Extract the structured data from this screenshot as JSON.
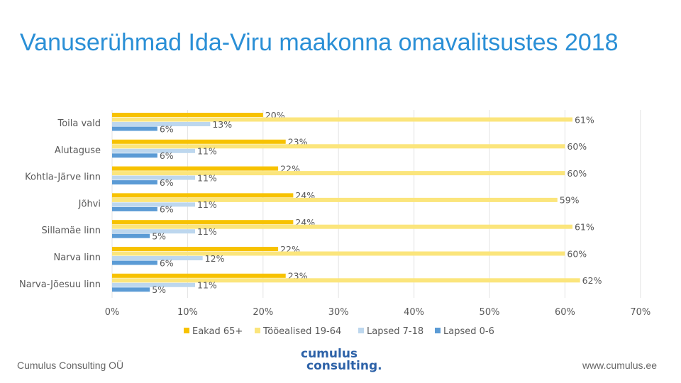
{
  "title": "Vanuserühmad Ida-Viru maakonna omavalitsustes 2018",
  "footer": {
    "company": "Cumulus Consulting OÜ",
    "url": "www.cumulus.ee",
    "logo_line1": "cumulus",
    "logo_line2": "consulting."
  },
  "colors": {
    "eakad": "#f7c200",
    "tooealised": "#fbe57c",
    "lapsed718": "#bdd7ee",
    "lapsed06": "#5b9bd5"
  },
  "chart_data": {
    "type": "bar",
    "orientation": "horizontal",
    "categories": [
      "Toila vald",
      "Alutaguse",
      "Kohtla-Järve linn",
      "Jõhvi",
      "Sillamäe linn",
      "Narva linn",
      "Narva-Jõesuu linn"
    ],
    "series": [
      {
        "name": "Eakad 65+",
        "color": "#f7c200",
        "values": [
          20,
          23,
          22,
          24,
          24,
          22,
          23
        ]
      },
      {
        "name": "Tööealised 19-64",
        "color": "#fbe57c",
        "values": [
          61,
          60,
          60,
          59,
          61,
          60,
          62
        ]
      },
      {
        "name": "Lapsed 7-18",
        "color": "#bdd7ee",
        "values": [
          13,
          11,
          11,
          11,
          11,
          12,
          11
        ]
      },
      {
        "name": "Lapsed 0-6",
        "color": "#5b9bd5",
        "values": [
          6,
          6,
          6,
          6,
          5,
          6,
          5
        ]
      }
    ],
    "xlim": [
      0,
      70
    ],
    "xticks": [
      "0%",
      "10%",
      "20%",
      "30%",
      "40%",
      "50%",
      "60%",
      "70%"
    ],
    "value_suffix": "%",
    "grid": true,
    "legend_position": "bottom"
  }
}
